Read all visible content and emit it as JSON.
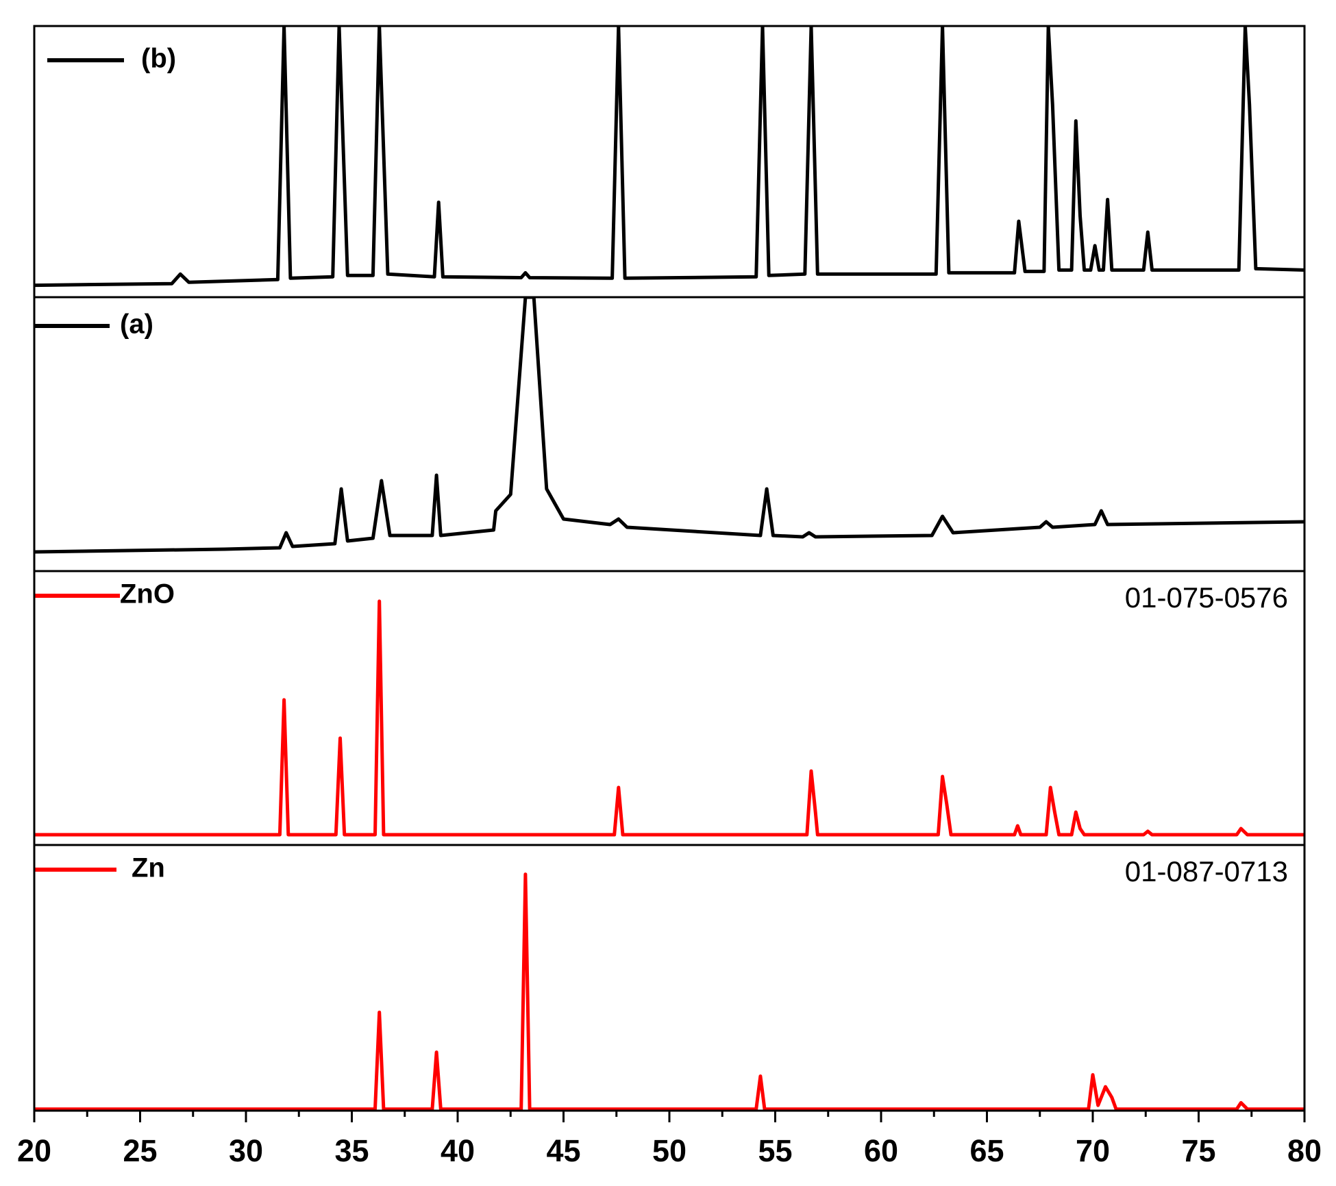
{
  "chart_data": [
    {
      "type": "line",
      "xlim": [
        20,
        80
      ],
      "ylim": [
        0,
        100
      ],
      "x": [
        20,
        26.5,
        26.9,
        27.3,
        31.5,
        31.8,
        32.1,
        34.1,
        34.4,
        34.8,
        36.0,
        36.3,
        36.7,
        38.9,
        39.1,
        39.3,
        43.0,
        43.2,
        43.4,
        47.3,
        47.6,
        47.9,
        54.1,
        54.4,
        54.7,
        56.4,
        56.7,
        57.0,
        62.6,
        62.9,
        63.2,
        66.3,
        66.5,
        66.8,
        67.7,
        67.9,
        68.1,
        68.4,
        69.0,
        69.2,
        69.4,
        69.6,
        69.9,
        70.1,
        70.3,
        70.5,
        70.7,
        70.9,
        72.4,
        72.6,
        72.8,
        76.9,
        77.2,
        77.4,
        77.7,
        80
      ],
      "series": [
        {
          "name": "(b)",
          "color": "#000000",
          "values": [
            4.4,
            5,
            8.5,
            5.5,
            6.5,
            100,
            7,
            7.5,
            100,
            8,
            8,
            100,
            8.5,
            7.5,
            35,
            7.5,
            7.2,
            9,
            7.2,
            7,
            100,
            7,
            7.5,
            100,
            8,
            8.5,
            100,
            8.5,
            8.5,
            100,
            9,
            9,
            28,
            9.5,
            9.5,
            100,
            71,
            10,
            10,
            65,
            30,
            10,
            10,
            19,
            10,
            10,
            36,
            10,
            10,
            24,
            10,
            10,
            100,
            71,
            10.5,
            10
          ]
        }
      ]
    },
    {
      "type": "line",
      "xlim": [
        20,
        80
      ],
      "ylim": [
        0,
        100
      ],
      "x": [
        20,
        29,
        31.6,
        31.9,
        32.2,
        34.2,
        34.5,
        34.8,
        36.0,
        36.4,
        36.8,
        38.8,
        39.0,
        39.2,
        41.7,
        41.8,
        42.5,
        43.2,
        43.6,
        44.2,
        45.0,
        47.2,
        47.6,
        48.0,
        54.3,
        54.6,
        54.9,
        56.3,
        56.6,
        56.9,
        62.4,
        62.9,
        63.4,
        67.5,
        67.8,
        68.1,
        70.1,
        70.4,
        70.7,
        80
      ],
      "series": [
        {
          "name": "(a)",
          "color": "#000000",
          "values": [
            7,
            8,
            8.5,
            14,
            9,
            10,
            30,
            11,
            12,
            33,
            13,
            13,
            35,
            13,
            15,
            22,
            28,
            100,
            100,
            30,
            19,
            17,
            19,
            16,
            13,
            30,
            13,
            12.5,
            14,
            12.5,
            13,
            20,
            14,
            16,
            18,
            16,
            17,
            22,
            17,
            18
          ]
        }
      ]
    },
    {
      "type": "line",
      "xlim": [
        20,
        80
      ],
      "ylim": [
        0,
        100
      ],
      "annotation": "01-075-0576",
      "x": [
        20,
        31.6,
        31.8,
        32.0,
        34.25,
        34.45,
        34.65,
        36.1,
        36.3,
        36.5,
        47.4,
        47.6,
        47.8,
        56.5,
        56.7,
        56.9,
        57.0,
        62.7,
        62.9,
        63.1,
        63.3,
        66.3,
        66.45,
        66.6,
        67.8,
        68.0,
        68.2,
        68.4,
        69.0,
        69.2,
        69.4,
        69.6,
        72.4,
        72.6,
        72.8,
        76.8,
        77.0,
        77.3,
        80
      ],
      "series": [
        {
          "name": "ZnO",
          "color": "#ff0000",
          "values": [
            3.75,
            3.75,
            53,
            3.75,
            3.75,
            39,
            3.75,
            3.75,
            89,
            3.75,
            3.75,
            21,
            3.75,
            3.75,
            27,
            12,
            3.75,
            3.75,
            25,
            15,
            3.75,
            3.75,
            7,
            3.75,
            3.75,
            21,
            12,
            3.75,
            3.75,
            12,
            6,
            3.75,
            3.75,
            5,
            3.75,
            3.75,
            6,
            3.75,
            3.75
          ]
        }
      ]
    },
    {
      "type": "line",
      "xlim": [
        20,
        80
      ],
      "ylim": [
        0,
        100
      ],
      "annotation": "01-087-0713",
      "xticks": [
        20,
        25,
        30,
        35,
        40,
        45,
        50,
        55,
        60,
        65,
        70,
        75,
        80
      ],
      "xminor_ticks": [
        22.5,
        27.5,
        32.5,
        37.5,
        42.5,
        47.5,
        52.5,
        57.5,
        62.5,
        67.5,
        72.5,
        77.5
      ],
      "x": [
        20,
        36.1,
        36.3,
        36.5,
        38.8,
        39.0,
        39.2,
        43.0,
        43.2,
        43.4,
        54.1,
        54.3,
        54.5,
        69.8,
        70.0,
        70.25,
        70.6,
        70.9,
        71.1,
        76.8,
        77.0,
        77.3,
        80
      ],
      "series": [
        {
          "name": "Zn",
          "color": "#ff0000",
          "values": [
            0.6,
            0.6,
            37,
            0.6,
            0.6,
            22,
            0.6,
            0.6,
            89,
            0.6,
            0.6,
            13,
            0.6,
            0.6,
            13.5,
            2,
            9,
            5,
            0.6,
            0.6,
            3,
            0.6,
            0.6
          ]
        }
      ]
    }
  ]
}
